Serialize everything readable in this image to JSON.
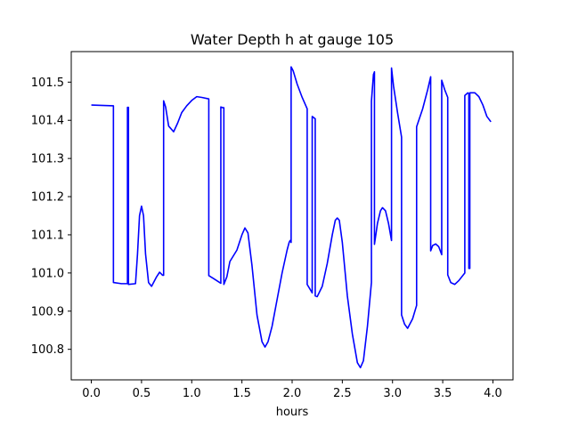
{
  "chart_data": {
    "type": "line",
    "title": "Water Depth h at gauge 105",
    "xlabel": "hours",
    "ylabel": "",
    "xlim": [
      -0.2,
      4.2
    ],
    "ylim": [
      100.72,
      101.58
    ],
    "grid": false,
    "xticks": [
      0.0,
      0.5,
      1.0,
      1.5,
      2.0,
      2.5,
      3.0,
      3.5,
      4.0
    ],
    "xtick_labels": [
      "0.0",
      "0.5",
      "1.0",
      "1.5",
      "2.0",
      "2.5",
      "3.0",
      "3.5",
      "4.0"
    ],
    "yticks": [
      100.8,
      100.9,
      101.0,
      101.1,
      101.2,
      101.3,
      101.4,
      101.5
    ],
    "ytick_labels": [
      "100.8",
      "100.9",
      "101.0",
      "101.1",
      "101.2",
      "101.3",
      "101.4",
      "101.5"
    ],
    "series": [
      {
        "name": "",
        "color": "#0000ff",
        "points": [
          [
            0.0,
            101.44
          ],
          [
            0.22,
            101.438
          ],
          [
            0.22,
            100.975
          ],
          [
            0.3,
            100.972
          ],
          [
            0.36,
            100.972
          ],
          [
            0.36,
            101.434
          ],
          [
            0.37,
            101.434
          ],
          [
            0.37,
            100.97
          ],
          [
            0.44,
            100.972
          ],
          [
            0.46,
            101.05
          ],
          [
            0.48,
            101.15
          ],
          [
            0.5,
            101.175
          ],
          [
            0.52,
            101.15
          ],
          [
            0.54,
            101.05
          ],
          [
            0.57,
            100.975
          ],
          [
            0.6,
            100.965
          ],
          [
            0.65,
            100.99
          ],
          [
            0.68,
            101.002
          ],
          [
            0.71,
            100.994
          ],
          [
            0.72,
            100.994
          ],
          [
            0.72,
            101.451
          ],
          [
            0.74,
            101.435
          ],
          [
            0.77,
            101.385
          ],
          [
            0.82,
            101.37
          ],
          [
            0.86,
            101.393
          ],
          [
            0.9,
            101.42
          ],
          [
            0.95,
            101.438
          ],
          [
            1.0,
            101.452
          ],
          [
            1.05,
            101.462
          ],
          [
            1.1,
            101.46
          ],
          [
            1.17,
            101.456
          ],
          [
            1.17,
            100.993
          ],
          [
            1.22,
            100.985
          ],
          [
            1.29,
            100.973
          ],
          [
            1.29,
            101.435
          ],
          [
            1.31,
            101.433
          ],
          [
            1.32,
            101.433
          ],
          [
            1.32,
            100.97
          ],
          [
            1.35,
            100.99
          ],
          [
            1.38,
            101.03
          ],
          [
            1.45,
            101.06
          ],
          [
            1.5,
            101.1
          ],
          [
            1.53,
            101.118
          ],
          [
            1.56,
            101.105
          ],
          [
            1.6,
            101.02
          ],
          [
            1.65,
            100.89
          ],
          [
            1.7,
            100.82
          ],
          [
            1.73,
            100.806
          ],
          [
            1.76,
            100.82
          ],
          [
            1.8,
            100.86
          ],
          [
            1.85,
            100.93
          ],
          [
            1.9,
            101.0
          ],
          [
            1.95,
            101.06
          ],
          [
            1.97,
            101.08
          ],
          [
            1.98,
            101.085
          ],
          [
            1.99,
            101.08
          ],
          [
            1.99,
            101.54
          ],
          [
            2.01,
            101.53
          ],
          [
            2.05,
            101.495
          ],
          [
            2.1,
            101.46
          ],
          [
            2.15,
            101.43
          ],
          [
            2.15,
            100.97
          ],
          [
            2.2,
            100.948
          ],
          [
            2.2,
            101.41
          ],
          [
            2.23,
            101.404
          ],
          [
            2.23,
            100.94
          ],
          [
            2.25,
            100.938
          ],
          [
            2.3,
            100.965
          ],
          [
            2.35,
            101.025
          ],
          [
            2.4,
            101.1
          ],
          [
            2.43,
            101.138
          ],
          [
            2.45,
            101.144
          ],
          [
            2.47,
            101.138
          ],
          [
            2.5,
            101.08
          ],
          [
            2.55,
            100.94
          ],
          [
            2.6,
            100.84
          ],
          [
            2.65,
            100.765
          ],
          [
            2.68,
            100.752
          ],
          [
            2.71,
            100.77
          ],
          [
            2.75,
            100.86
          ],
          [
            2.79,
            100.975
          ],
          [
            2.79,
            101.45
          ],
          [
            2.81,
            101.52
          ],
          [
            2.82,
            101.527
          ],
          [
            2.82,
            101.075
          ],
          [
            2.85,
            101.13
          ],
          [
            2.88,
            101.163
          ],
          [
            2.9,
            101.171
          ],
          [
            2.93,
            101.163
          ],
          [
            2.96,
            101.13
          ],
          [
            2.99,
            101.085
          ],
          [
            2.99,
            101.537
          ],
          [
            3.01,
            101.49
          ],
          [
            3.05,
            101.42
          ],
          [
            3.09,
            101.356
          ],
          [
            3.09,
            100.89
          ],
          [
            3.12,
            100.866
          ],
          [
            3.15,
            100.855
          ],
          [
            3.2,
            100.88
          ],
          [
            3.24,
            100.915
          ],
          [
            3.24,
            101.383
          ],
          [
            3.3,
            101.43
          ],
          [
            3.35,
            101.48
          ],
          [
            3.38,
            101.514
          ],
          [
            3.38,
            101.058
          ],
          [
            3.4,
            101.072
          ],
          [
            3.43,
            101.076
          ],
          [
            3.46,
            101.069
          ],
          [
            3.49,
            101.048
          ],
          [
            3.49,
            101.505
          ],
          [
            3.52,
            101.48
          ],
          [
            3.55,
            101.46
          ],
          [
            3.55,
            100.995
          ],
          [
            3.58,
            100.975
          ],
          [
            3.62,
            100.97
          ],
          [
            3.66,
            100.98
          ],
          [
            3.72,
            101.0
          ],
          [
            3.72,
            101.465
          ],
          [
            3.75,
            101.472
          ],
          [
            3.76,
            101.47
          ],
          [
            3.76,
            101.012
          ],
          [
            3.77,
            101.012
          ],
          [
            3.77,
            101.472
          ],
          [
            3.82,
            101.472
          ],
          [
            3.86,
            101.462
          ],
          [
            3.9,
            101.44
          ],
          [
            3.94,
            101.41
          ],
          [
            3.98,
            101.396
          ]
        ]
      }
    ]
  }
}
